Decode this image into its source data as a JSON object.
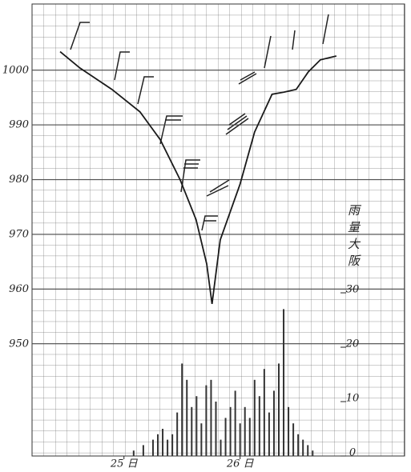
{
  "chart_data": {
    "type": "line",
    "xlim": [
      -7,
      70
    ],
    "xticks": [
      {
        "value": 12,
        "label": "25 日"
      },
      {
        "value": 36,
        "label": "26 日"
      }
    ],
    "ylim": [
      929.5,
      1012.1
    ],
    "yticks": [
      950,
      960,
      970,
      980,
      990,
      1000
    ],
    "y2lim": [
      0,
      83.1
    ],
    "y2ticks": [
      0,
      10,
      20,
      30
    ],
    "y2label": "雨量大阪",
    "grid": true,
    "series": [
      {
        "color": "#1a1a1a",
        "x": [
          -1.2,
          2.9,
          9.5,
          15.3,
          19.5,
          23.6,
          26.9,
          29.1,
          30.2,
          31.9,
          36,
          39,
          42.6,
          45.1,
          47.6,
          50.1,
          52.6,
          55.9
        ],
        "values": [
          1003.4,
          1000.4,
          996.5,
          992.4,
          987.3,
          980,
          972.7,
          964.6,
          957.3,
          969,
          979.2,
          988.7,
          995.6,
          996,
          996.5,
          999.7,
          1001.9,
          1002.6
        ]
      },
      {
        "type": "bar",
        "axis": "y2",
        "color": "#333333",
        "x": [
          14,
          15,
          16,
          17,
          18,
          19,
          20,
          21,
          22,
          23,
          24,
          25,
          26,
          27,
          28,
          29,
          30,
          31,
          32,
          33,
          34,
          35,
          36,
          37,
          38,
          39,
          40,
          41,
          42,
          43,
          44,
          45,
          46,
          47,
          48,
          49,
          50,
          51
        ],
        "values": [
          1,
          0,
          2,
          0,
          3,
          4,
          5,
          3,
          4,
          8,
          17,
          14,
          9,
          11,
          6,
          13,
          14,
          10,
          3,
          7,
          9,
          12,
          6,
          9,
          7,
          14,
          11,
          16,
          8,
          12,
          17,
          27,
          9,
          6,
          4,
          3,
          2,
          1
        ]
      }
    ]
  }
}
